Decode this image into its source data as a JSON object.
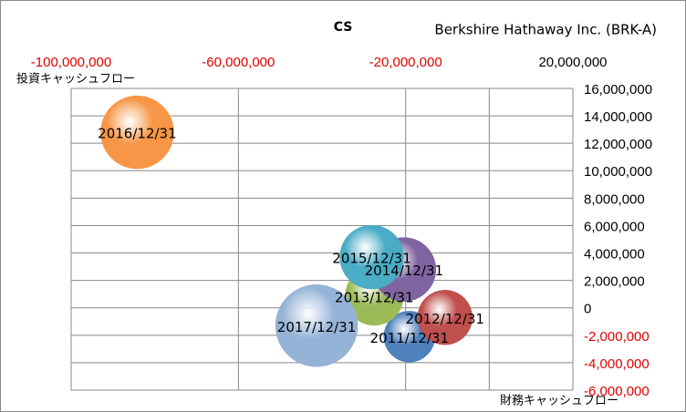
{
  "chart_data": {
    "type": "bubble",
    "title": "CS",
    "subtitle": "Berkshire Hathaway Inc. (BRK-A)",
    "x_label": "投資キャッシュフロー",
    "y_label": "財務キャッシュフロー",
    "xlim": [
      -100000000,
      20000000
    ],
    "xticks": [
      {
        "value": -100000000,
        "label": "-100,000,000"
      },
      {
        "value": -60000000,
        "label": "-60,000,000"
      },
      {
        "value": -20000000,
        "label": "-20,000,000"
      },
      {
        "value": 20000000,
        "label": "20,000,000"
      }
    ],
    "ylim": [
      -6000000,
      16000000
    ],
    "yticks": [
      {
        "value": 16000000,
        "label": "16,000,000"
      },
      {
        "value": 14000000,
        "label": "14,000,000"
      },
      {
        "value": 12000000,
        "label": "12,000,000"
      },
      {
        "value": 10000000,
        "label": "10,000,000"
      },
      {
        "value": 8000000,
        "label": "8,000,000"
      },
      {
        "value": 6000000,
        "label": "6,000,000"
      },
      {
        "value": 4000000,
        "label": "4,000,000"
      },
      {
        "value": 2000000,
        "label": "2,000,000"
      },
      0,
      {
        "value": -2000000,
        "label": "-2,000,000"
      },
      {
        "value": -4000000,
        "label": "-4,000,000"
      },
      {
        "value": -6000000,
        "label": "-6,000,000"
      }
    ],
    "negative_tick_color": "#e00000",
    "grid": true,
    "series": [
      {
        "name": "2011/12/31",
        "color": "#4f81bd",
        "x": [
          -19100000
        ],
        "values": [
          -2100000
        ],
        "sizes": [
          784
        ]
      },
      {
        "name": "2012/12/31",
        "color": "#c0504d",
        "x": [
          -10600000
        ],
        "values": [
          -700000
        ],
        "sizes": [
          900
        ]
      },
      {
        "name": "2013/12/31",
        "color": "#9bbb59",
        "x": [
          -27500000
        ],
        "values": [
          850000
        ],
        "sizes": [
          1024
        ]
      },
      {
        "name": "2014/12/31",
        "color": "#8064a2",
        "x": [
          -20400000
        ],
        "values": [
          2800000
        ],
        "sizes": [
          1225
        ]
      },
      {
        "name": "2015/12/31",
        "color": "#4bacc6",
        "x": [
          -28100000
        ],
        "values": [
          3700000
        ],
        "sizes": [
          1225
        ]
      },
      {
        "name": "2016/12/31",
        "color": "#f79646",
        "x": [
          -84200000
        ],
        "values": [
          12800000
        ],
        "sizes": [
          1600
        ]
      },
      {
        "name": "2017/12/31",
        "color": "#95b3d7",
        "x": [
          -41300000
        ],
        "values": [
          -1300000
        ],
        "sizes": [
          2025
        ]
      }
    ]
  }
}
